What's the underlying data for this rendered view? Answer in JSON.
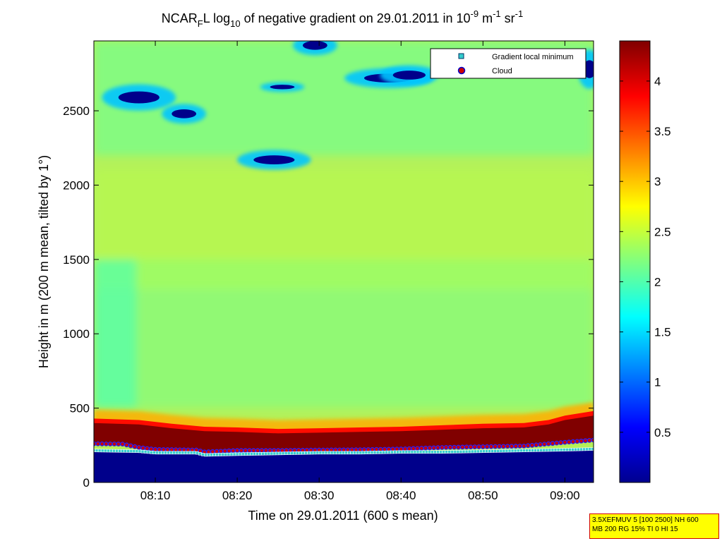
{
  "chart_data": {
    "type": "heatmap",
    "title": {
      "part1": "NCAR",
      "part1_sub": "F",
      "part2": "L log",
      "part2_sub": "10",
      "part3": " of negative gradient on 29.01.2011 in 10",
      "exp1": "-9",
      "part4": " m",
      "exp2": "-1",
      "part5": " sr",
      "exp3": "-1"
    },
    "xlabel": "Time on 29.01.2011 (600 s mean)",
    "ylabel": "Height in m (200 m mean, tilted by 1°)",
    "x_ticks": [
      "08:10",
      "08:20",
      "08:30",
      "08:40",
      "08:50",
      "09:00"
    ],
    "x_tick_minutes": [
      10,
      20,
      30,
      40,
      50,
      60
    ],
    "xlim_minutes": [
      2.5,
      63.5
    ],
    "y_ticks": [
      0,
      500,
      1000,
      1500,
      2000,
      2500
    ],
    "ylim": [
      0,
      2970
    ],
    "colorbar": {
      "range": [
        0,
        4.4
      ],
      "ticks": [
        0.5,
        1,
        1.5,
        2,
        2.5,
        3,
        3.5,
        4
      ],
      "tick_labels": [
        "0.5",
        "1",
        "1.5",
        "2",
        "2.5",
        "3",
        "3.5",
        "4"
      ],
      "colormap": "jet"
    },
    "legend": {
      "placement": "top-right",
      "entries": [
        {
          "label": "Gradient local minimum",
          "marker": "square",
          "color": "#33cccc"
        },
        {
          "label": "Cloud",
          "marker": "circle",
          "color": "#cc0000"
        }
      ]
    },
    "field_description_values": {
      "background_log_value": 2.25,
      "near_ground_value": 0.05,
      "cloud_layer_value": 4.4,
      "cloud_base_height_m": [
        [
          2.5,
          260
        ],
        [
          6,
          258
        ],
        [
          8,
          235
        ],
        [
          10,
          222
        ],
        [
          15,
          218
        ],
        [
          16,
          205
        ],
        [
          20,
          215
        ],
        [
          25,
          215
        ],
        [
          30,
          218
        ],
        [
          35,
          220
        ],
        [
          40,
          225
        ],
        [
          45,
          235
        ],
        [
          50,
          240
        ],
        [
          55,
          245
        ],
        [
          58,
          260
        ],
        [
          60,
          270
        ],
        [
          63.5,
          285
        ]
      ],
      "cloud_top_height_m": [
        [
          2.5,
          430
        ],
        [
          8,
          420
        ],
        [
          12,
          395
        ],
        [
          16,
          375
        ],
        [
          20,
          370
        ],
        [
          25,
          360
        ],
        [
          30,
          365
        ],
        [
          35,
          370
        ],
        [
          40,
          375
        ],
        [
          45,
          385
        ],
        [
          50,
          395
        ],
        [
          55,
          400
        ],
        [
          58,
          420
        ],
        [
          60,
          450
        ],
        [
          63.5,
          480
        ]
      ],
      "gradient_minimum_height_m": [
        [
          2.5,
          215
        ],
        [
          8,
          210
        ],
        [
          10,
          200
        ],
        [
          15,
          200
        ],
        [
          16,
          185
        ],
        [
          20,
          190
        ],
        [
          25,
          195
        ],
        [
          30,
          200
        ],
        [
          35,
          200
        ],
        [
          40,
          205
        ],
        [
          45,
          205
        ],
        [
          50,
          210
        ],
        [
          55,
          215
        ],
        [
          60,
          220
        ],
        [
          63.5,
          225
        ]
      ],
      "low_value_patches": [
        {
          "x": 8.0,
          "y": 2590,
          "rx": 2.5,
          "ry": 40
        },
        {
          "x": 13.5,
          "y": 2480,
          "rx": 1.5,
          "ry": 30
        },
        {
          "x": 24.5,
          "y": 2170,
          "rx": 2.5,
          "ry": 30
        },
        {
          "x": 25.5,
          "y": 2660,
          "rx": 1.5,
          "ry": 15
        },
        {
          "x": 29.5,
          "y": 2940,
          "rx": 1.5,
          "ry": 30
        },
        {
          "x": 38.5,
          "y": 2720,
          "rx": 3.0,
          "ry": 30
        },
        {
          "x": 41.0,
          "y": 2740,
          "rx": 2.0,
          "ry": 30
        },
        {
          "x": 63.0,
          "y": 2780,
          "rx": 0.8,
          "ry": 60
        }
      ]
    }
  },
  "info_box": {
    "line1": "3.5XEFMUV 5 [100 2500] NH 600",
    "line2": "MB 200 RG 15% TI 0 HI 15"
  }
}
